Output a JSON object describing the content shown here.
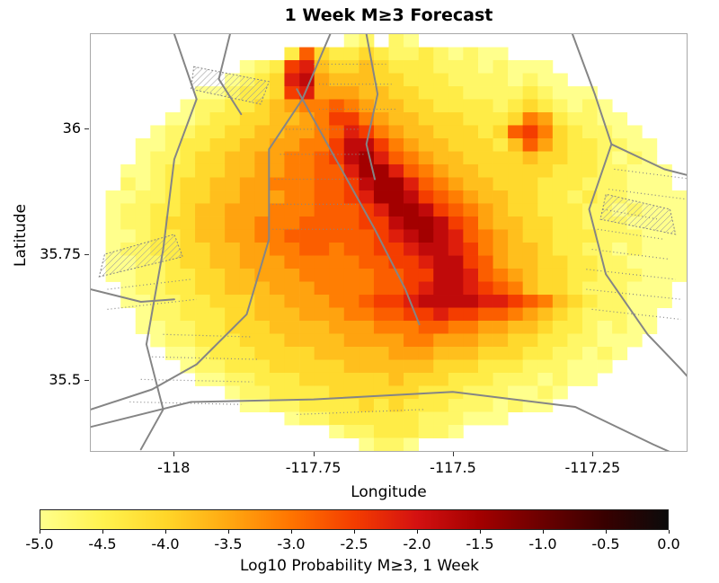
{
  "chart_data": {
    "type": "heatmap",
    "title": "1 Week M≥3 Forecast",
    "xlabel": "Longitude",
    "ylabel": "Latitude",
    "xlim": [
      -118.15,
      -117.08
    ],
    "ylim": [
      35.357,
      36.19
    ],
    "xticks": {
      "values": [
        -118,
        -117.75,
        -117.5,
        -117.25
      ],
      "labels": [
        "-118",
        "-117.75",
        "-117.5",
        "-117.25"
      ]
    },
    "yticks": {
      "values": [
        36,
        35.75,
        35.5
      ],
      "labels": [
        "36",
        "35.75",
        "35.5"
      ]
    },
    "grid": {
      "ncols": 40,
      "nrows": 32,
      "levels": {
        "a": -5.0,
        "b": -4.7,
        "c": -4.4,
        "d": -4.05,
        "e": -3.75,
        "f": -3.45,
        "g": -3.1,
        "h": -2.8,
        "i": -2.5,
        "j": -2.15,
        "k": -1.8,
        "l": -1.5
      },
      "rows": [
        ".................ab.ba..................",
        ".............chdccdcbbcbabaa............",
        "..........abcijeddedcccbbbabaaa.........",
        ".........abcdjkfeeeddcccbbbbabaa........",
        ".......aabccdijfffeeddcccbbbbcbaaa......",
        "......abbccdefgghgfeeddccccbcdcbaba.....",
        ".....aabccddeefgiigfeedddcccdgfcbbaa....",
        "....abbccddeeffghjigfeedddcdhigdcbbaa...",
        "...aabccddeeffggikkigfeedddcehfdccbbaa..",
        "...abbcddeeffgghikljhgfeeddddeddccbaba..",
        "..aabccddeeffgghhjlljhgfeedddddcccbbaaa.",
        "..babcddeeffggghhiklljhgfeedddcccbbbaaa.",
        ".aabbcddeefffgghhijllkihgfeeddccbcbbaaaa",
        ".abbccdeefffggghhhijllkihgfeddcccbbabaaa",
        ".abbcddeeffggghhhhiikllkihfeeddccbbbaaaa",
        ".aabccdeeffgghhhhhhijklkjhgfeddcccbbbaaa",
        ".abbccddeeffgghhghhiijkkjigfeedccbbabaaa",
        ".aabbcddeefffggggghhiijkkihfeeddccbbaaaa",
        ".aabbccddeefffggggghhiikkjhgfeddccbbbaaa",
        "..abbccddeeefffgggghhijkkjihgeddcbbbaaa.",
        "..aabbccdddeefffgghiijkkkkjjihgedcbbaaa.",
        "...abbcccddeeefffgghhiijiihhgfedcbbbaa..",
        "...aabbccdddeeeefffggghhggffeedccbabaa..",
        "....abbcccdddeeeeffffggfffeeddccbbaaa...",
        ".....aabcccddddeeeeefffeeedddccbbaba....",
        "......abbcccdddddeeeeeedddcccbbbaaa.....",
        ".......aabbcccddddddedddcccbbbabaa......",
        ".........abbccccddddddcccbbbaaba........",
        "..........aabbccccdcdcccbbbabaa.........",
        ".............abbccccccbbbaaa............",
        "................abbcccbba...............",
        "..................abba.................."
      ]
    },
    "colormap": {
      "stops": [
        [
          -5.0,
          "#FFFF8C"
        ],
        [
          -4.5,
          "#FFF24E"
        ],
        [
          -4.0,
          "#FFD629"
        ],
        [
          -3.5,
          "#FFA811"
        ],
        [
          -3.0,
          "#FF7400"
        ],
        [
          -2.5,
          "#F43D00"
        ],
        [
          -2.0,
          "#D41111"
        ],
        [
          -1.5,
          "#A30000"
        ],
        [
          -1.0,
          "#6B0000"
        ],
        [
          -0.5,
          "#380000"
        ],
        [
          0.0,
          "#0B0B0B"
        ]
      ]
    },
    "colorbar": {
      "label": "Log10 Probability M≥3, 1 Week",
      "min": -5,
      "max": 0,
      "tick_values": [
        -5.0,
        -4.5,
        -4.0,
        -3.5,
        -3.0,
        -2.5,
        -2.0,
        -1.5,
        -1.0,
        -0.5,
        0.0
      ],
      "tick_labels": [
        "-5.0",
        "-4.5",
        "-4.0",
        "-3.5",
        "-3.0",
        "-2.5",
        "-2.0",
        "-1.5",
        "-1.0",
        "-0.5",
        "0.0"
      ]
    },
    "overlays": {
      "line_color": "#858585",
      "solid_lines": [
        [
          [
            -118.0,
            36.19
          ],
          [
            -117.96,
            36.06
          ],
          [
            -118.0,
            35.94
          ],
          [
            -118.02,
            35.76
          ],
          [
            -118.05,
            35.57
          ],
          [
            -118.02,
            35.44
          ],
          [
            -118.06,
            35.36
          ]
        ],
        [
          [
            -117.72,
            36.19
          ],
          [
            -117.77,
            36.06
          ],
          [
            -117.83,
            35.96
          ],
          [
            -117.83,
            35.78
          ],
          [
            -117.87,
            35.63
          ],
          [
            -117.96,
            35.53
          ],
          [
            -118.04,
            35.48
          ],
          [
            -118.15,
            35.44
          ]
        ],
        [
          [
            -117.78,
            36.08
          ],
          [
            -117.71,
            35.94
          ],
          [
            -117.64,
            35.8
          ],
          [
            -117.585,
            35.68
          ],
          [
            -117.56,
            35.61
          ]
        ],
        [
          [
            -117.655,
            36.19
          ],
          [
            -117.635,
            36.07
          ],
          [
            -117.655,
            35.97
          ],
          [
            -117.64,
            35.9
          ]
        ],
        [
          [
            -117.285,
            36.19
          ],
          [
            -117.245,
            36.07
          ],
          [
            -117.215,
            35.97
          ],
          [
            -117.255,
            35.84
          ],
          [
            -117.225,
            35.71
          ],
          [
            -117.15,
            35.59
          ],
          [
            -117.09,
            35.52
          ],
          [
            -117.05,
            35.47
          ]
        ],
        [
          [
            -117.215,
            35.97
          ],
          [
            -117.12,
            35.92
          ],
          [
            -117.05,
            35.9
          ]
        ],
        [
          [
            -118.15,
            35.405
          ],
          [
            -117.97,
            35.455
          ],
          [
            -117.75,
            35.46
          ],
          [
            -117.5,
            35.475
          ],
          [
            -117.28,
            35.445
          ],
          [
            -117.14,
            35.37
          ],
          [
            -117.06,
            35.33
          ]
        ],
        [
          [
            -118.15,
            35.68
          ],
          [
            -118.06,
            35.655
          ],
          [
            -118.0,
            35.66
          ]
        ],
        [
          [
            -117.9,
            36.19
          ],
          [
            -117.92,
            36.1
          ],
          [
            -117.88,
            36.03
          ]
        ]
      ],
      "dotted_lines": [
        [
          [
            -118.08,
            35.455
          ],
          [
            -117.88,
            35.45
          ]
        ],
        [
          [
            -118.06,
            35.5
          ],
          [
            -117.86,
            35.495
          ]
        ],
        [
          [
            -118.04,
            35.545
          ],
          [
            -117.85,
            35.54
          ]
        ],
        [
          [
            -118.02,
            35.59
          ],
          [
            -117.86,
            35.585
          ]
        ],
        [
          [
            -118.12,
            35.64
          ],
          [
            -117.96,
            35.66
          ]
        ],
        [
          [
            -118.12,
            35.68
          ],
          [
            -117.97,
            35.7
          ]
        ],
        [
          [
            -117.83,
            35.8
          ],
          [
            -117.68,
            35.8
          ]
        ],
        [
          [
            -117.83,
            35.85
          ],
          [
            -117.67,
            35.85
          ]
        ],
        [
          [
            -117.82,
            35.9
          ],
          [
            -117.66,
            35.9
          ]
        ],
        [
          [
            -117.81,
            35.95
          ],
          [
            -117.66,
            35.95
          ]
        ],
        [
          [
            -117.8,
            36.0
          ],
          [
            -117.67,
            36.0
          ]
        ],
        [
          [
            -117.74,
            36.04
          ],
          [
            -117.6,
            36.04
          ]
        ],
        [
          [
            -117.74,
            36.09
          ],
          [
            -117.61,
            36.09
          ]
        ],
        [
          [
            -117.75,
            36.13
          ],
          [
            -117.62,
            36.13
          ]
        ],
        [
          [
            -117.25,
            35.64
          ],
          [
            -117.09,
            35.62
          ]
        ],
        [
          [
            -117.26,
            35.68
          ],
          [
            -117.09,
            35.66
          ]
        ],
        [
          [
            -117.26,
            35.72
          ],
          [
            -117.1,
            35.7
          ]
        ],
        [
          [
            -117.25,
            35.76
          ],
          [
            -117.11,
            35.74
          ]
        ],
        [
          [
            -117.24,
            35.8
          ],
          [
            -117.12,
            35.78
          ]
        ],
        [
          [
            -117.23,
            35.84
          ],
          [
            -117.13,
            35.82
          ]
        ],
        [
          [
            -117.22,
            35.88
          ],
          [
            -117.08,
            35.86
          ]
        ],
        [
          [
            -117.21,
            35.92
          ],
          [
            -117.07,
            35.9
          ]
        ],
        [
          [
            -117.78,
            35.43
          ],
          [
            -117.55,
            35.44
          ]
        ]
      ],
      "hatch_polygons": [
        [
          [
            -118.135,
            35.705
          ],
          [
            -117.985,
            35.745
          ],
          [
            -118.0,
            35.79
          ],
          [
            -118.125,
            35.75
          ]
        ],
        [
          [
            -117.965,
            36.125
          ],
          [
            -117.83,
            36.095
          ],
          [
            -117.845,
            36.05
          ],
          [
            -117.97,
            36.08
          ]
        ],
        [
          [
            -117.235,
            35.82
          ],
          [
            -117.1,
            35.79
          ],
          [
            -117.11,
            35.84
          ],
          [
            -117.225,
            35.87
          ]
        ]
      ]
    }
  }
}
